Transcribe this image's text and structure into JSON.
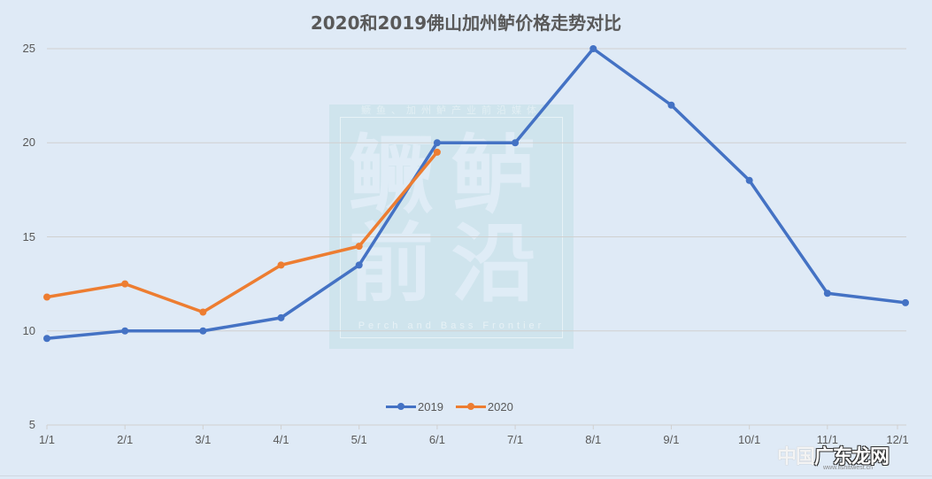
{
  "chart_data": {
    "type": "line",
    "title": "2020和2019佛山加州鲈价格走势对比",
    "xlabel": "",
    "ylabel": "",
    "categories": [
      "1/1",
      "2/1",
      "3/1",
      "4/1",
      "5/1",
      "6/1",
      "7/1",
      "8/1",
      "9/1",
      "10/1",
      "11/1",
      "12/1"
    ],
    "series": [
      {
        "name": "2019",
        "color": "#4472c4",
        "values": [
          9.6,
          10,
          10,
          10.7,
          13.5,
          20,
          20,
          25,
          22,
          18,
          12,
          11.5
        ]
      },
      {
        "name": "2020",
        "color": "#ed7d31",
        "values": [
          11.8,
          12.5,
          11,
          13.5,
          14.5,
          19.5,
          null,
          null,
          null,
          null,
          null,
          null
        ]
      }
    ],
    "ylim": [
      5,
      25
    ],
    "yticks": [
      "25",
      "20",
      "15",
      "10",
      "5"
    ],
    "grid": true,
    "legend_position": "bottom"
  },
  "watermark": {
    "top_text": "鳜鱼、加州鲈产业前沿媒体",
    "big_text": "鳜鲈前沿",
    "subtitle": "Perch and Bass Frontier"
  },
  "corner_watermark": {
    "faint": "中国",
    "bold": "广东龙网",
    "url": "www.lishitiwest.cn"
  }
}
